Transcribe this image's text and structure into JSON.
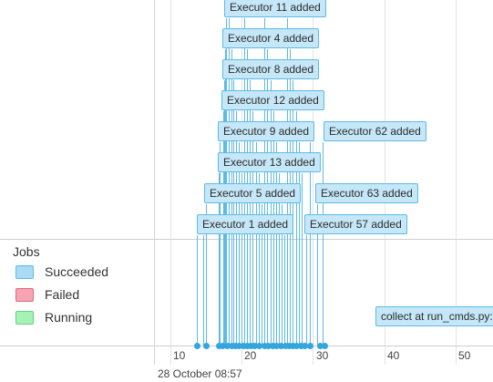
{
  "legend": {
    "title": "Jobs",
    "items": [
      {
        "label": "Succeeded",
        "color": "#a9dcf4",
        "border": "#5bbbe8"
      },
      {
        "label": "Failed",
        "color": "#f7a3b1",
        "border": "#e06a7e"
      },
      {
        "label": "Running",
        "color": "#a6f2b6",
        "border": "#62d27c"
      }
    ]
  },
  "axis": {
    "ticks": [
      "10",
      "20",
      "30",
      "40",
      "50"
    ],
    "date_label": "28 October 08:57"
  },
  "events": [
    {
      "label": "Executor 11 added"
    },
    {
      "label": "Executor 4 added"
    },
    {
      "label": "Executor 8 added"
    },
    {
      "label": "Executor 12 added"
    },
    {
      "label": "Executor 9 added"
    },
    {
      "label": "Executor 62 added"
    },
    {
      "label": "Executor 13 added"
    },
    {
      "label": "Executor 5 added"
    },
    {
      "label": "Executor 63 added"
    },
    {
      "label": "Executor 1 added"
    },
    {
      "label": "Executor 57 added"
    },
    {
      "label": "collect at run_cmds.py:"
    }
  ]
}
